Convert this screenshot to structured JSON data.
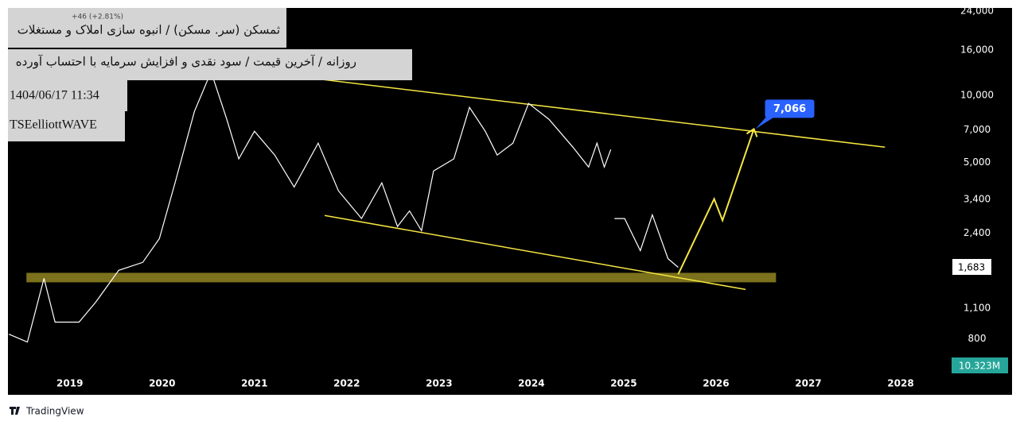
{
  "chart_data": {
    "type": "line",
    "title": "ثمسکن (سر. مسکن) / انبوه سازی املاک و مستغلات",
    "subtitle": "روزانه / آخرین قیمت / سود نقدی و افزایش سرمایه با احتساب آورده",
    "date_text": "1404/06/17 11:34",
    "author": "TSEelliottWAVE",
    "change_text": "+46 (+2.81%)",
    "volume_label": "10.323M",
    "price_label": "1,683",
    "target_label": "7,066",
    "brand": "TradingView",
    "log_scale": true,
    "color": "#ffffff",
    "x": [
      2018.34,
      2018.54,
      2018.72,
      2018.84,
      2019.1,
      2019.28,
      2019.53,
      2019.79,
      2019.97,
      2020.14,
      2020.35,
      2020.53,
      2020.7,
      2020.83,
      2021.0,
      2021.22,
      2021.43,
      2021.69,
      2021.91,
      2022.16,
      2022.38,
      2022.55,
      2022.68,
      2022.81,
      2022.94,
      2023.16,
      2023.33,
      2023.5,
      2023.63,
      2023.8,
      2023.97,
      2024.19,
      2024.45,
      2024.62,
      2024.71,
      2024.79,
      2024.86,
      2024.88,
      2024.9,
      2025.01,
      2025.18,
      2025.31,
      2025.48,
      2025.59
    ],
    "values": [
      841,
      775,
      1500,
      953,
      953,
      1171,
      1630,
      1770,
      2265,
      4040,
      8480,
      12800,
      7820,
      5180,
      6900,
      5390,
      3870,
      6100,
      3720,
      2790,
      4040,
      2570,
      3020,
      2460,
      4570,
      5180,
      8840,
      6900,
      5390,
      6100,
      9210,
      7820,
      5850,
      4760,
      6100,
      4760,
      5710,
      null,
      2790,
      2790,
      2000,
      2900,
      1840,
      1683
    ],
    "upper_channel": {
      "x": [
        2020.66,
        2027.83
      ],
      "values": [
        13370,
        5850
      ],
      "color": "#f5e642"
    },
    "lower_channel": {
      "x": [
        2021.76,
        2026.32
      ],
      "values": [
        2880,
        1337
      ],
      "color": "#f5e642"
    },
    "support_zone": {
      "x": [
        2018.53,
        2026.65
      ],
      "values": [
        1440,
        1589
      ],
      "color": "#8a7d1f"
    },
    "forecast": {
      "x": [
        2025.59,
        2025.98,
        2026.07,
        2026.41
      ],
      "values": [
        1565,
        3420,
        2735,
        7066
      ],
      "color": "#f5e642"
    },
    "xlim": [
      2018.33,
      2028.5
    ],
    "xticks": [
      2019,
      2020,
      2021,
      2022,
      2023,
      2024,
      2025,
      2026,
      2027,
      2028
    ],
    "ylim": [
      560,
      24800
    ],
    "yticks": [
      {
        "value": 800,
        "label": "800"
      },
      {
        "value": 1100,
        "label": "1,100"
      },
      {
        "value": 2400,
        "label": "2,400"
      },
      {
        "value": 3400,
        "label": "3,400"
      },
      {
        "value": 5000,
        "label": "5,000"
      },
      {
        "value": 7000,
        "label": "7,000"
      },
      {
        "value": 10000,
        "label": "10,000"
      },
      {
        "value": 16000,
        "label": "16,000"
      },
      {
        "value": 24000,
        "label": "24,000"
      }
    ]
  }
}
